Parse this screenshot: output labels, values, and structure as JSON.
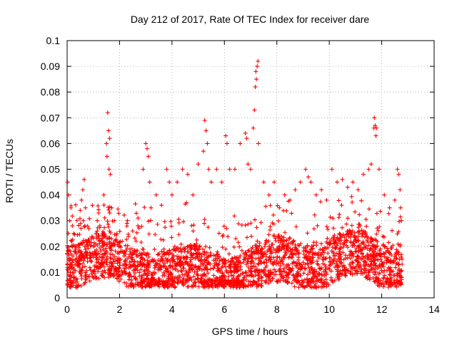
{
  "chart_data": {
    "type": "scatter",
    "title": "Day 212 of 2017, Rate Of TEC Index for receiver dare",
    "xlabel": "GPS time / hours",
    "ylabel": "ROTI / TECUs",
    "xlim": [
      0,
      14
    ],
    "ylim": [
      0,
      0.1
    ],
    "x_ticks": [
      "0",
      "2",
      "4",
      "6",
      "8",
      "10",
      "12",
      "14"
    ],
    "y_ticks": [
      "0",
      "0.01",
      "0.02",
      "0.03",
      "0.04",
      "0.05",
      "0.06",
      "0.07",
      "0.08",
      "0.09",
      "0.1"
    ],
    "grid": true,
    "marker": "+",
    "color": "#ff0000",
    "series": [
      {
        "x": [
          0.02,
          0.05,
          0.1,
          0.15,
          0.2,
          0.25,
          0.3,
          0.12,
          0.08,
          0.18,
          0.5,
          0.55,
          0.6,
          0.65,
          0.7,
          0.62,
          0.68,
          1.0,
          1.05,
          1.1,
          1.15,
          1.2,
          1.25,
          1.3,
          1.4,
          1.5,
          1.52,
          1.55,
          1.58,
          1.6,
          1.62,
          1.65,
          1.7,
          1.8,
          1.9,
          2.1,
          2.3,
          2.5,
          2.7,
          2.9,
          3.0,
          3.05,
          3.1,
          3.15,
          3.2,
          3.4,
          3.6,
          3.8,
          3.9,
          4.0,
          4.2,
          4.4,
          4.6,
          4.8,
          5.0,
          5.2,
          5.25,
          5.3,
          5.35,
          5.4,
          5.5,
          5.7,
          5.9,
          6.05,
          6.1,
          6.2,
          6.4,
          6.6,
          6.8,
          6.85,
          6.9,
          7.0,
          7.1,
          7.15,
          7.18,
          7.2,
          7.22,
          7.25,
          7.28,
          7.3,
          7.5,
          7.7,
          7.9,
          8.1,
          8.3,
          8.5,
          8.7,
          8.9,
          9.1,
          9.2,
          9.3,
          9.5,
          9.7,
          9.9,
          10.1,
          10.3,
          10.5,
          10.7,
          10.9,
          11.1,
          11.3,
          11.5,
          11.6,
          11.7,
          11.72,
          11.75,
          11.78,
          11.8,
          11.9,
          12.1,
          12.3,
          12.5,
          12.6,
          12.65,
          12.7,
          12.72,
          12.75
        ],
        "y": [
          0.045,
          0.04,
          0.03,
          0.035,
          0.028,
          0.025,
          0.02,
          0.015,
          0.012,
          0.022,
          0.034,
          0.038,
          0.042,
          0.046,
          0.035,
          0.03,
          0.028,
          0.02,
          0.018,
          0.025,
          0.03,
          0.033,
          0.028,
          0.022,
          0.04,
          0.06,
          0.055,
          0.072,
          0.065,
          0.05,
          0.062,
          0.048,
          0.035,
          0.03,
          0.025,
          0.022,
          0.03,
          0.026,
          0.028,
          0.05,
          0.06,
          0.058,
          0.055,
          0.045,
          0.035,
          0.04,
          0.036,
          0.05,
          0.045,
          0.04,
          0.045,
          0.05,
          0.048,
          0.04,
          0.052,
          0.057,
          0.069,
          0.065,
          0.06,
          0.05,
          0.045,
          0.05,
          0.045,
          0.063,
          0.06,
          0.05,
          0.05,
          0.06,
          0.064,
          0.062,
          0.052,
          0.05,
          0.066,
          0.073,
          0.082,
          0.088,
          0.085,
          0.09,
          0.092,
          0.06,
          0.045,
          0.04,
          0.045,
          0.035,
          0.04,
          0.038,
          0.042,
          0.045,
          0.05,
          0.047,
          0.045,
          0.04,
          0.042,
          0.038,
          0.05,
          0.045,
          0.046,
          0.043,
          0.045,
          0.042,
          0.048,
          0.05,
          0.052,
          0.066,
          0.07,
          0.067,
          0.063,
          0.066,
          0.05,
          0.04,
          0.035,
          0.038,
          0.05,
          0.048,
          0.042,
          0.035,
          0.03
        ]
      }
    ]
  }
}
